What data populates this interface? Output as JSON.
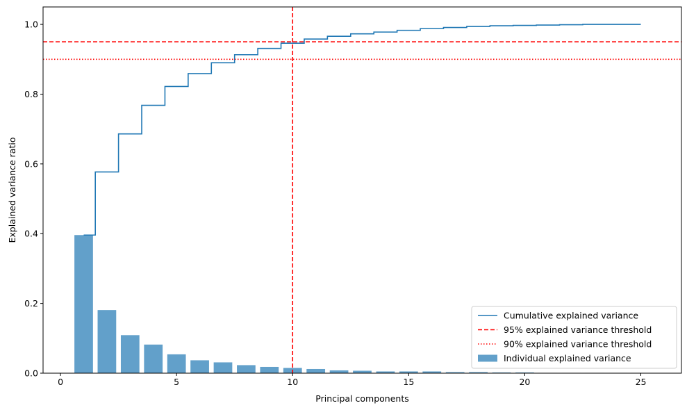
{
  "chart_data": {
    "type": "bar",
    "xlabel": "Principal components",
    "ylabel": "Explained variance ratio",
    "xlim": [
      -0.75,
      26.75
    ],
    "ylim": [
      0.0,
      1.05
    ],
    "xticks": [
      0,
      5,
      10,
      15,
      20,
      25
    ],
    "xtick_labels": [
      "0",
      "5",
      "10",
      "15",
      "20",
      "25"
    ],
    "yticks": [
      0.0,
      0.2,
      0.4,
      0.6,
      0.8,
      1.0
    ],
    "ytick_labels": [
      "0.0",
      "0.2",
      "0.4",
      "0.6",
      "0.8",
      "1.0"
    ],
    "grid": false,
    "legend_position": "lower-right",
    "components": [
      1,
      2,
      3,
      4,
      5,
      6,
      7,
      8,
      9,
      10,
      11,
      12,
      13,
      14,
      15,
      16,
      17,
      18,
      19,
      20,
      21,
      22,
      23,
      24,
      25
    ],
    "series": [
      {
        "name": "Individual explained variance",
        "kind": "bar",
        "color": "#1f77b4",
        "values": [
          0.396,
          0.181,
          0.109,
          0.082,
          0.054,
          0.037,
          0.031,
          0.023,
          0.018,
          0.015,
          0.012,
          0.008,
          0.007,
          0.005,
          0.005,
          0.005,
          0.003,
          0.003,
          0.002,
          0.002,
          0.001,
          0.001,
          0.001,
          0.001,
          0.001
        ]
      },
      {
        "name": "Cumulative explained variance",
        "kind": "step",
        "color": "#1f77b4",
        "values": [
          0.396,
          0.577,
          0.686,
          0.768,
          0.822,
          0.859,
          0.89,
          0.913,
          0.931,
          0.946,
          0.958,
          0.966,
          0.973,
          0.978,
          0.983,
          0.988,
          0.991,
          0.994,
          0.996,
          0.997,
          0.998,
          0.999,
          1.0,
          1.0,
          1.0
        ]
      }
    ],
    "thresholds": [
      {
        "name": "95% explained variance threshold",
        "orientation": "horizontal",
        "value": 0.95,
        "style": "dashed",
        "color": "#ff0000"
      },
      {
        "name": "90% explained variance threshold",
        "orientation": "horizontal",
        "value": 0.9,
        "style": "dotted",
        "color": "#ff0000"
      }
    ],
    "vertical_line": {
      "orientation": "vertical",
      "value": 10,
      "style": "dashed",
      "color": "#ff0000"
    },
    "legend": [
      {
        "label": "Cumulative explained variance",
        "marker": "line-solid",
        "color": "#1f77b4"
      },
      {
        "label": "95% explained variance threshold",
        "marker": "line-dashed",
        "color": "#ff0000"
      },
      {
        "label": "90% explained variance threshold",
        "marker": "line-dotted",
        "color": "#ff0000"
      },
      {
        "label": "Individual explained variance",
        "marker": "patch",
        "color": "#1f77b4"
      }
    ]
  }
}
